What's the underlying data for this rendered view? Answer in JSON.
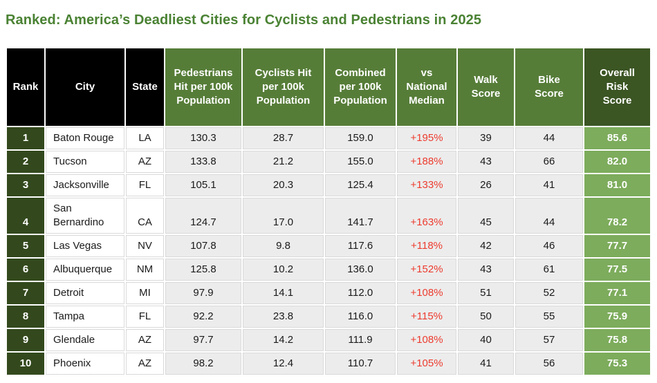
{
  "title": {
    "text": "Ranked: America’s Deadliest Cities for Cyclists and Pedestrians in 2025"
  },
  "colors": {
    "title_green": "#4a8233",
    "header_black": "#000000",
    "header_green": "#567d38",
    "header_dark_green": "#3b5523",
    "rank_cell_green": "#33491d",
    "risk_cell_green": "#7dac5c",
    "data_cell_gray": "#ececec",
    "vs_median_red": "#ed3b2e"
  },
  "table": {
    "columns": [
      {
        "key": "rank",
        "label": "Rank"
      },
      {
        "key": "city",
        "label": "City"
      },
      {
        "key": "state",
        "label": "State"
      },
      {
        "key": "ped",
        "label": "Pedestrians\nHit per 100k\nPopulation"
      },
      {
        "key": "cyc",
        "label": "Cyclists Hit\nper 100k\nPopulation"
      },
      {
        "key": "combined",
        "label": "Combined\nper 100k\nPopulation"
      },
      {
        "key": "vs",
        "label": "vs\nNational\nMedian"
      },
      {
        "key": "walk",
        "label": "Walk\nScore"
      },
      {
        "key": "bike",
        "label": "Bike\nScore"
      },
      {
        "key": "risk",
        "label": "Overall\nRisk\nScore"
      }
    ],
    "rows": [
      {
        "rank": "1",
        "city": "Baton Rouge",
        "state": "LA",
        "ped": "130.3",
        "cyc": "28.7",
        "combined": "159.0",
        "vs": "+195%",
        "walk": "39",
        "bike": "44",
        "risk": "85.6"
      },
      {
        "rank": "2",
        "city": "Tucson",
        "state": "AZ",
        "ped": "133.8",
        "cyc": "21.2",
        "combined": "155.0",
        "vs": "+188%",
        "walk": "43",
        "bike": "66",
        "risk": "82.0"
      },
      {
        "rank": "3",
        "city": "Jacksonville",
        "state": "FL",
        "ped": "105.1",
        "cyc": "20.3",
        "combined": "125.4",
        "vs": "+133%",
        "walk": "26",
        "bike": "41",
        "risk": "81.0"
      },
      {
        "rank": "4",
        "city": "San Bernardino",
        "state": "CA",
        "ped": "124.7",
        "cyc": "17.0",
        "combined": "141.7",
        "vs": "+163%",
        "walk": "45",
        "bike": "44",
        "risk": "78.2"
      },
      {
        "rank": "5",
        "city": "Las Vegas",
        "state": "NV",
        "ped": "107.8",
        "cyc": "9.8",
        "combined": "117.6",
        "vs": "+118%",
        "walk": "42",
        "bike": "46",
        "risk": "77.7"
      },
      {
        "rank": "6",
        "city": "Albuquerque",
        "state": "NM",
        "ped": "125.8",
        "cyc": "10.2",
        "combined": "136.0",
        "vs": "+152%",
        "walk": "43",
        "bike": "61",
        "risk": "77.5"
      },
      {
        "rank": "7",
        "city": "Detroit",
        "state": "MI",
        "ped": "97.9",
        "cyc": "14.1",
        "combined": "112.0",
        "vs": "+108%",
        "walk": "51",
        "bike": "52",
        "risk": "77.1"
      },
      {
        "rank": "8",
        "city": "Tampa",
        "state": "FL",
        "ped": "92.2",
        "cyc": "23.8",
        "combined": "116.0",
        "vs": "+115%",
        "walk": "50",
        "bike": "55",
        "risk": "75.9"
      },
      {
        "rank": "9",
        "city": "Glendale",
        "state": "AZ",
        "ped": "97.7",
        "cyc": "14.2",
        "combined": "111.9",
        "vs": "+108%",
        "walk": "40",
        "bike": "57",
        "risk": "75.8"
      },
      {
        "rank": "10",
        "city": "Phoenix",
        "state": "AZ",
        "ped": "98.2",
        "cyc": "12.4",
        "combined": "110.7",
        "vs": "+105%",
        "walk": "41",
        "bike": "56",
        "risk": "75.3"
      }
    ]
  },
  "chart_data": {
    "type": "table",
    "title": "Ranked: America’s Deadliest Cities for Cyclists and Pedestrians in 2025",
    "columns": [
      "Rank",
      "City",
      "State",
      "Pedestrians Hit per 100k Population",
      "Cyclists Hit per 100k Population",
      "Combined per 100k Population",
      "vs National Median",
      "Walk Score",
      "Bike Score",
      "Overall Risk Score"
    ],
    "rows": [
      [
        1,
        "Baton Rouge",
        "LA",
        130.3,
        28.7,
        159.0,
        "+195%",
        39,
        44,
        85.6
      ],
      [
        2,
        "Tucson",
        "AZ",
        133.8,
        21.2,
        155.0,
        "+188%",
        43,
        66,
        82.0
      ],
      [
        3,
        "Jacksonville",
        "FL",
        105.1,
        20.3,
        125.4,
        "+133%",
        26,
        41,
        81.0
      ],
      [
        4,
        "San Bernardino",
        "CA",
        124.7,
        17.0,
        141.7,
        "+163%",
        45,
        44,
        78.2
      ],
      [
        5,
        "Las Vegas",
        "NV",
        107.8,
        9.8,
        117.6,
        "+118%",
        42,
        46,
        77.7
      ],
      [
        6,
        "Albuquerque",
        "NM",
        125.8,
        10.2,
        136.0,
        "+152%",
        43,
        61,
        77.5
      ],
      [
        7,
        "Detroit",
        "MI",
        97.9,
        14.1,
        112.0,
        "+108%",
        51,
        52,
        77.1
      ],
      [
        8,
        "Tampa",
        "FL",
        92.2,
        23.8,
        116.0,
        "+115%",
        50,
        55,
        75.9
      ],
      [
        9,
        "Glendale",
        "AZ",
        97.7,
        14.2,
        111.9,
        "+108%",
        40,
        57,
        75.8
      ],
      [
        10,
        "Phoenix",
        "AZ",
        98.2,
        12.4,
        110.7,
        "+105%",
        41,
        56,
        75.3
      ]
    ]
  }
}
